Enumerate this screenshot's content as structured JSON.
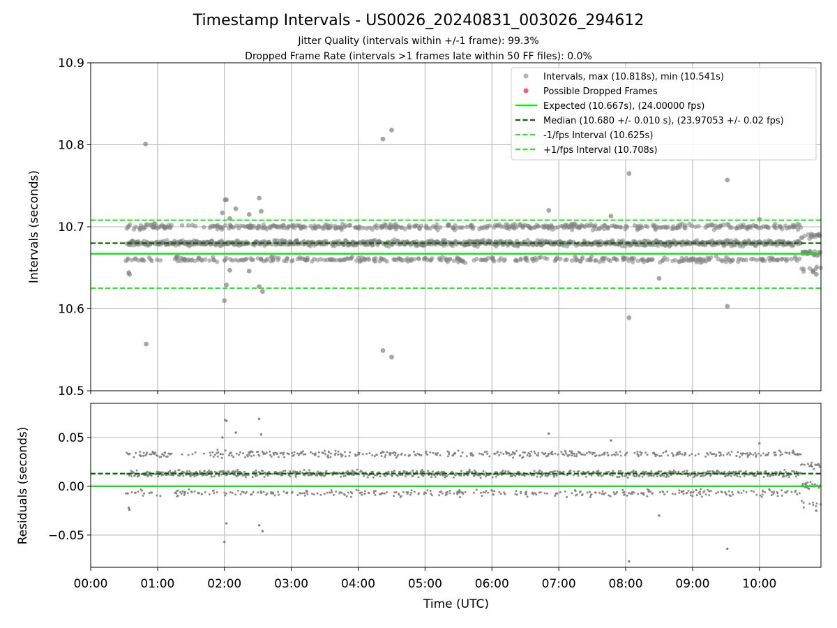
{
  "chart_data": [
    {
      "type": "scatter",
      "title": "Timestamp Intervals - US0026_20240831_003026_294612",
      "subtitle_lines": [
        "Jitter Quality (intervals within +/-1 frame): 99.3%",
        "Dropped Frame Rate (intervals >1 frames late within 50 FF files): 0.0%"
      ],
      "ylabel": "Intervals (seconds)",
      "ylim": [
        10.5,
        10.9
      ],
      "yticks": [
        "10.5",
        "10.6",
        "10.7",
        "10.8",
        "10.9"
      ],
      "xlim_hours": [
        0,
        10.92
      ],
      "grid": true,
      "legend_position": "top-right",
      "legend": [
        "Intervals, max (10.818s), min (10.541s)",
        "Possible Dropped Frames",
        "Expected (10.667s), (24.00000 fps)",
        "Median (10.680 +/- 0.010 s), (23.97053 +/- 0.02 fps)",
        "-1/fps Interval (10.625s)",
        "+1/fps Interval (10.708s)"
      ],
      "reference_lines": {
        "expected": 10.667,
        "median": 10.68,
        "minus_1fps": 10.625,
        "plus_1fps": 10.708
      },
      "stats": {
        "max": 10.818,
        "min": 10.541,
        "median_sd": 0.01,
        "fps_expected": 24.0,
        "fps_median": 23.97053,
        "fps_sd": 0.02
      },
      "bulk_bands": [
        10.66,
        10.68,
        10.7
      ],
      "data_start_hour": 0.53,
      "data_end_hour": 10.92,
      "outliers": [
        {
          "x": 0.82,
          "y": 10.801
        },
        {
          "x": 0.83,
          "y": 10.557
        },
        {
          "x": 1.97,
          "y": 10.717
        },
        {
          "x": 2.01,
          "y": 10.733
        },
        {
          "x": 2.03,
          "y": 10.733
        },
        {
          "x": 2.0,
          "y": 10.61
        },
        {
          "x": 2.03,
          "y": 10.629
        },
        {
          "x": 2.08,
          "y": 10.71
        },
        {
          "x": 2.17,
          "y": 10.722
        },
        {
          "x": 2.37,
          "y": 10.715
        },
        {
          "x": 2.52,
          "y": 10.735
        },
        {
          "x": 2.55,
          "y": 10.719
        },
        {
          "x": 2.52,
          "y": 10.627
        },
        {
          "x": 2.57,
          "y": 10.621
        },
        {
          "x": 2.37,
          "y": 10.646
        },
        {
          "x": 2.08,
          "y": 10.647
        },
        {
          "x": 4.37,
          "y": 10.807
        },
        {
          "x": 4.5,
          "y": 10.818
        },
        {
          "x": 4.37,
          "y": 10.549
        },
        {
          "x": 4.5,
          "y": 10.541
        },
        {
          "x": 6.85,
          "y": 10.72
        },
        {
          "x": 7.78,
          "y": 10.713
        },
        {
          "x": 8.05,
          "y": 10.765
        },
        {
          "x": 8.05,
          "y": 10.589
        },
        {
          "x": 8.5,
          "y": 10.637
        },
        {
          "x": 9.52,
          "y": 10.757
        },
        {
          "x": 9.52,
          "y": 10.603
        },
        {
          "x": 10.0,
          "y": 10.709
        },
        {
          "x": 10.8,
          "y": 10.645
        },
        {
          "x": 10.85,
          "y": 10.642
        },
        {
          "x": 0.57,
          "y": 10.644
        },
        {
          "x": 0.58,
          "y": 10.642
        }
      ]
    },
    {
      "type": "scatter",
      "ylabel": "Residuals (seconds)",
      "xlabel": "Time (UTC)",
      "ylim": [
        -0.083,
        0.085
      ],
      "yticks": [
        "−0.05",
        "0.00",
        "0.05"
      ],
      "ytick_values": [
        -0.05,
        0.0,
        0.05
      ],
      "xticks": [
        "00:00",
        "01:00",
        "02:00",
        "03:00",
        "04:00",
        "05:00",
        "06:00",
        "07:00",
        "08:00",
        "09:00",
        "10:00"
      ],
      "xtick_hours": [
        0,
        1,
        2,
        3,
        4,
        5,
        6,
        7,
        8,
        9,
        10
      ],
      "xlim_hours": [
        0,
        10.92
      ],
      "grid": true,
      "reference_lines": {
        "expected": 0.0,
        "median": 0.013
      },
      "bulk_bands": [
        -0.007,
        0.013,
        0.033
      ],
      "outliers": [
        {
          "x": 2.01,
          "y": 0.068
        },
        {
          "x": 2.03,
          "y": 0.067
        },
        {
          "x": 2.52,
          "y": 0.069
        },
        {
          "x": 2.52,
          "y": -0.04
        },
        {
          "x": 2.57,
          "y": -0.046
        },
        {
          "x": 2.0,
          "y": -0.057
        },
        {
          "x": 2.03,
          "y": -0.038
        },
        {
          "x": 1.97,
          "y": 0.05
        },
        {
          "x": 2.17,
          "y": 0.055
        },
        {
          "x": 2.55,
          "y": 0.053
        },
        {
          "x": 6.85,
          "y": 0.054
        },
        {
          "x": 7.78,
          "y": 0.047
        },
        {
          "x": 8.05,
          "y": -0.077
        },
        {
          "x": 8.5,
          "y": -0.03
        },
        {
          "x": 9.52,
          "y": -0.064
        },
        {
          "x": 10.0,
          "y": 0.044
        },
        {
          "x": 0.57,
          "y": -0.022
        },
        {
          "x": 0.58,
          "y": -0.024
        },
        {
          "x": 10.85,
          "y": -0.025
        }
      ]
    }
  ],
  "colors": {
    "points": "#808080",
    "dropped": "#f06060",
    "expected": "#00ee00",
    "median": "#006400",
    "interval": "#22ee22",
    "grid": "#b0b0b0"
  }
}
